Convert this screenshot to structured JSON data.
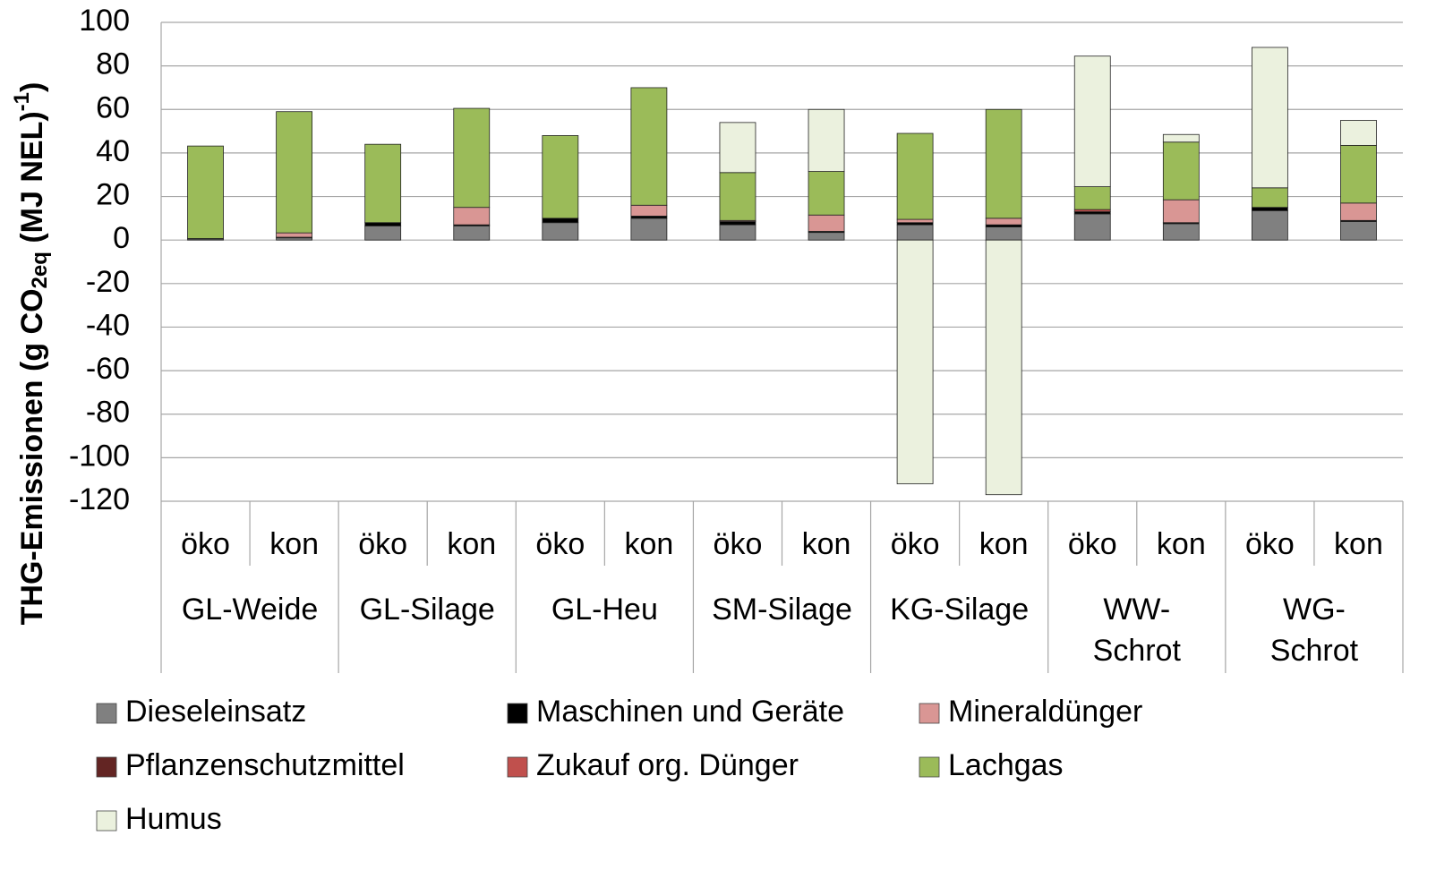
{
  "chart_data": {
    "type": "stacked_bar",
    "y_label": [
      "THG-Emissionen (g CO",
      "2eq",
      " (MJ NEL)",
      "-1",
      ")"
    ],
    "categories": [
      "öko",
      "kon",
      "öko",
      "kon",
      "öko",
      "kon",
      "öko",
      "kon",
      "öko",
      "kon",
      "öko",
      "kon",
      "öko",
      "kon"
    ],
    "groups": [
      [
        "GL-Weide"
      ],
      [
        "GL-Silage"
      ],
      [
        "GL-Heu"
      ],
      [
        "SM-Silage"
      ],
      [
        "KG-Silage"
      ],
      [
        "WW-",
        "Schrot"
      ],
      [
        "WG-",
        "Schrot"
      ]
    ],
    "ylim": [
      -120,
      100
    ],
    "yticks": [
      -120,
      -100,
      -80,
      -60,
      -40,
      -20,
      0,
      20,
      40,
      60,
      80,
      100
    ],
    "grid": true,
    "series": [
      {
        "name": "Dieseleinsatz",
        "color": "#808080",
        "values": [
          0.5,
          1,
          6.5,
          6.5,
          8,
          10,
          7,
          3.5,
          7,
          6,
          12,
          7.5,
          13.5,
          8.5
        ]
      },
      {
        "name": "Maschinen und Geräte",
        "color": "#000000",
        "values": [
          0.2,
          0.3,
          1.5,
          0.5,
          2,
          1,
          1.5,
          0.5,
          1,
          1,
          1,
          0.5,
          1.5,
          0.5
        ]
      },
      {
        "name": "Mineraldünger",
        "color": "#d99694",
        "values": [
          0,
          2,
          0,
          8,
          0,
          5,
          0.5,
          7.5,
          1.5,
          3,
          0,
          10.5,
          0,
          8
        ]
      },
      {
        "name": "Pflanzenschutzmittel",
        "color": "#632523",
        "values": [
          0,
          0,
          0,
          0,
          0,
          0,
          0,
          0,
          0,
          0,
          0,
          0,
          0,
          0
        ]
      },
      {
        "name": "Zukauf org. Dünger",
        "color": "#c0504d",
        "values": [
          0,
          0,
          0,
          0,
          0,
          0,
          0,
          0,
          0,
          0,
          1,
          0,
          0,
          0
        ]
      },
      {
        "name": "Lachgas",
        "color": "#9bbb59",
        "values": [
          42.5,
          55.7,
          36,
          45.5,
          38,
          54,
          22,
          20,
          39.5,
          50,
          10.5,
          26.5,
          9,
          26.5
        ]
      },
      {
        "name": "Humus",
        "color": "#ebf1de",
        "values": [
          0,
          0,
          0,
          0,
          0,
          0,
          23,
          28.5,
          -112,
          -117,
          60,
          3.5,
          64.5,
          11.5
        ]
      }
    ]
  }
}
